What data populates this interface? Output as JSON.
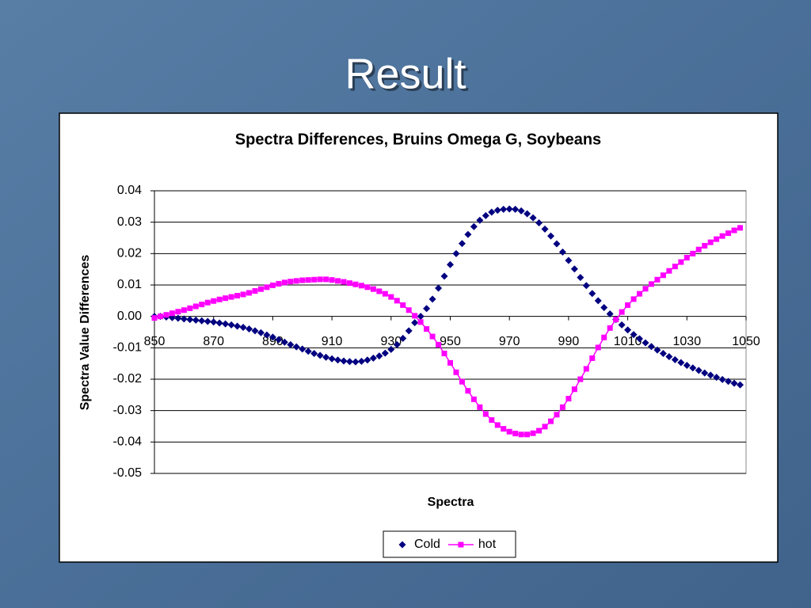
{
  "header": {
    "title": "Result"
  },
  "chart_data": {
    "type": "scatter",
    "title": "Spectra  Differences,  Bruins Omega G, Soybeans",
    "x_label": "Spectra",
    "y_label": "Spectra Value Differences",
    "xlim": [
      850,
      1050
    ],
    "xticks": [
      850,
      870,
      890,
      910,
      930,
      950,
      970,
      990,
      1010,
      1030,
      1050
    ],
    "ylim": [
      -0.05,
      0.04
    ],
    "yticks": [
      0.04,
      0.03,
      0.02,
      0.01,
      {
        "value": 0,
        "label": "0.00"
      },
      -0.01,
      -0.02,
      -0.03,
      -0.04,
      -0.05
    ],
    "grid": true,
    "legend": "bottom",
    "x": [
      850,
      852,
      854,
      856,
      858,
      860,
      862,
      864,
      866,
      868,
      870,
      872,
      874,
      876,
      878,
      880,
      882,
      884,
      886,
      888,
      890,
      892,
      894,
      896,
      898,
      900,
      902,
      904,
      906,
      908,
      910,
      912,
      914,
      916,
      918,
      920,
      922,
      924,
      926,
      928,
      930,
      932,
      934,
      936,
      938,
      940,
      942,
      944,
      946,
      948,
      950,
      952,
      954,
      956,
      958,
      960,
      962,
      964,
      966,
      968,
      970,
      972,
      974,
      976,
      978,
      980,
      982,
      984,
      986,
      988,
      990,
      992,
      994,
      996,
      998,
      1000,
      1002,
      1004,
      1006,
      1008,
      1010,
      1012,
      1014,
      1016,
      1018,
      1020,
      1022,
      1024,
      1026,
      1028,
      1030,
      1032,
      1034,
      1036,
      1038,
      1040,
      1042,
      1044,
      1046,
      1048
    ],
    "series": [
      {
        "name": "Cold",
        "color": "#000080",
        "marker": "diamond",
        "line": false,
        "values": [
          0.0,
          0.0,
          -0.0002,
          -0.0004,
          -0.0006,
          -0.0008,
          -0.001,
          -0.0012,
          -0.0014,
          -0.0016,
          -0.0018,
          -0.0021,
          -0.0024,
          -0.0027,
          -0.0031,
          -0.0035,
          -0.004,
          -0.0046,
          -0.0052,
          -0.0059,
          -0.0066,
          -0.0074,
          -0.0082,
          -0.009,
          -0.0097,
          -0.0104,
          -0.0111,
          -0.0118,
          -0.0124,
          -0.013,
          -0.0135,
          -0.0139,
          -0.0142,
          -0.0144,
          -0.0145,
          -0.0143,
          -0.0139,
          -0.0133,
          -0.0126,
          -0.0117,
          -0.0105,
          -0.009,
          -0.007,
          -0.0046,
          -0.002,
          0.0,
          0.0025,
          0.0055,
          0.009,
          0.0128,
          0.0165,
          0.02,
          0.0232,
          0.0261,
          0.0286,
          0.0306,
          0.0321,
          0.0332,
          0.0338,
          0.0341,
          0.0342,
          0.0341,
          0.0336,
          0.0327,
          0.0314,
          0.0298,
          0.0278,
          0.0256,
          0.0231,
          0.0205,
          0.0178,
          0.0151,
          0.0124,
          0.0098,
          0.0073,
          0.005,
          0.0028,
          0.0008,
          -0.001,
          -0.0027,
          -0.0043,
          -0.0058,
          -0.0071,
          -0.0084,
          -0.0096,
          -0.0107,
          -0.0118,
          -0.0128,
          -0.0138,
          -0.0147,
          -0.0156,
          -0.0164,
          -0.0172,
          -0.018,
          -0.0187,
          -0.0194,
          -0.0201,
          -0.0207,
          -0.0213,
          -0.0218
        ]
      },
      {
        "name": "hot",
        "color": "#ff00ff",
        "marker": "square",
        "line": true,
        "values": [
          -0.0005,
          0.0,
          0.0005,
          0.001,
          0.0015,
          0.002,
          0.0026,
          0.0032,
          0.0038,
          0.0044,
          0.0049,
          0.0054,
          0.0058,
          0.0062,
          0.0066,
          0.007,
          0.0075,
          0.0081,
          0.0087,
          0.0093,
          0.0099,
          0.0104,
          0.0108,
          0.0111,
          0.0113,
          0.0115,
          0.0116,
          0.0117,
          0.0118,
          0.0118,
          0.0116,
          0.0113,
          0.011,
          0.0106,
          0.0102,
          0.0098,
          0.0093,
          0.0087,
          0.008,
          0.0072,
          0.0062,
          0.005,
          0.0036,
          0.002,
          0.0002,
          -0.0018,
          -0.004,
          -0.0064,
          -0.009,
          -0.0118,
          -0.0148,
          -0.0178,
          -0.0208,
          -0.0237,
          -0.0264,
          -0.0289,
          -0.0311,
          -0.033,
          -0.0346,
          -0.0358,
          -0.0367,
          -0.0373,
          -0.0376,
          -0.0376,
          -0.0372,
          -0.0364,
          -0.0351,
          -0.0334,
          -0.0313,
          -0.0289,
          -0.0262,
          -0.0232,
          -0.02,
          -0.0167,
          -0.0133,
          -0.0099,
          -0.0067,
          -0.0037,
          -0.001,
          0.0014,
          0.0036,
          0.0055,
          0.0072,
          0.0088,
          0.0103,
          0.0117,
          0.0131,
          0.0145,
          0.0159,
          0.0173,
          0.0187,
          0.02,
          0.0213,
          0.0225,
          0.0236,
          0.0246,
          0.0256,
          0.0265,
          0.0274,
          0.0282
        ]
      }
    ]
  }
}
